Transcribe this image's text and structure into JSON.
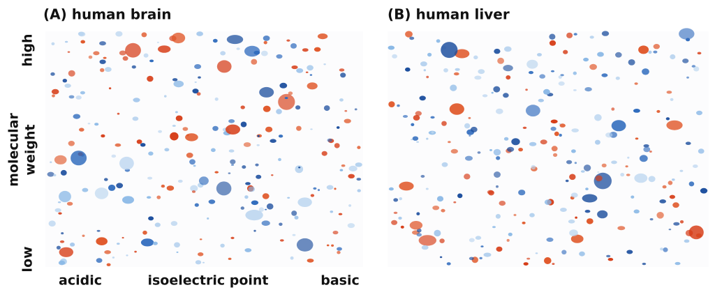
{
  "panels": [
    {
      "title": "(A) human brain"
    },
    {
      "title": "(B) human liver"
    }
  ],
  "y_axis": {
    "high": "high",
    "label_lines": [
      "molecular",
      "weight"
    ],
    "low": "low"
  },
  "x_axis": {
    "left": "acidic",
    "center": "isoelectric point",
    "right": "basic"
  }
}
